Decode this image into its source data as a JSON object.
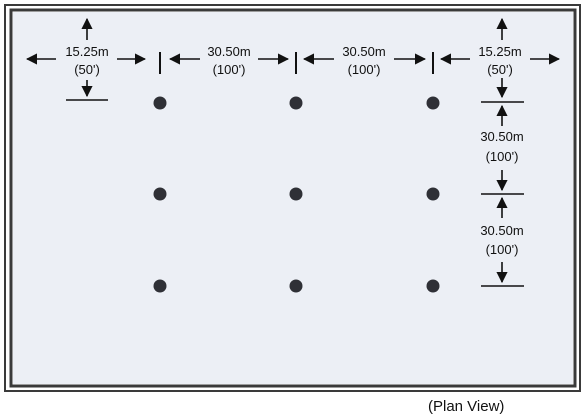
{
  "colors": {
    "plate": "#eceff5",
    "frame": "#3a3a3a",
    "line": "#111111",
    "dot": "#2f3036"
  },
  "grid": {
    "rows": 3,
    "cols": 3
  },
  "dimensions": {
    "edge_top_left_m": "15.25m",
    "edge_top_left_ft": "(50')",
    "span_1_m": "30.50m",
    "span_1_ft": "(100')",
    "span_2_m": "30.50m",
    "span_2_ft": "(100')",
    "edge_top_right_m": "15.25m",
    "edge_top_right_ft": "(50')",
    "row_span_1_m": "30.50m",
    "row_span_1_ft": "(100')",
    "row_span_2_m": "30.50m",
    "row_span_2_ft": "(100')"
  },
  "caption": "(Plan View)"
}
